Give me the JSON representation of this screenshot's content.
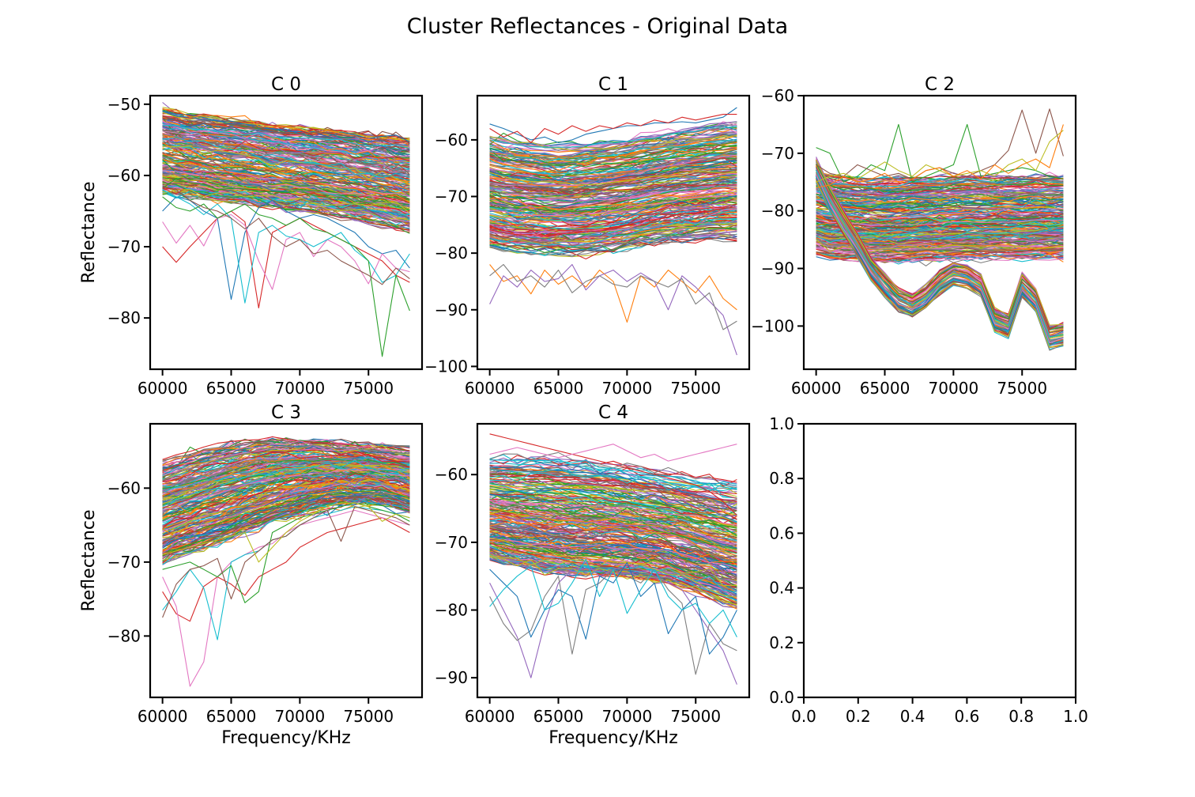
{
  "figure": {
    "title": "Cluster Reflectances - Original Data"
  },
  "palette": [
    "#1f77b4",
    "#ff7f0e",
    "#2ca02c",
    "#d62728",
    "#9467bd",
    "#8c564b",
    "#e377c2",
    "#7f7f7f",
    "#bcbd22",
    "#17becf"
  ],
  "chart_data": [
    {
      "id": "c0",
      "type": "line",
      "title": "C 0",
      "xlabel": "",
      "ylabel": "Reflectance",
      "x": [
        60000,
        61000,
        62000,
        63000,
        64000,
        65000,
        66000,
        67000,
        68000,
        69000,
        70000,
        71000,
        72000,
        73000,
        74000,
        75000,
        76000,
        77000,
        78000
      ],
      "xlim": [
        59100,
        78900
      ],
      "ylim": [
        -87.2,
        -48.8
      ],
      "xticks": [
        60000,
        65000,
        70000,
        75000
      ],
      "yticks": [
        -80,
        -70,
        -60,
        -50
      ],
      "envelope": {
        "upper": [
          -50.5,
          -51.0,
          -51.3,
          -51.5,
          -51.8,
          -52.0,
          -52.3,
          -52.5,
          -52.8,
          -53.0,
          -53.2,
          -53.4,
          -53.6,
          -53.8,
          -54.1,
          -54.4,
          -54.6,
          -54.9,
          -55.1
        ],
        "lower": [
          -62.5,
          -62.8,
          -63.0,
          -63.3,
          -63.6,
          -63.8,
          -64.0,
          -64.3,
          -64.6,
          -64.8,
          -65.0,
          -65.2,
          -65.5,
          -65.8,
          -66.1,
          -66.5,
          -66.8,
          -67.2,
          -67.6
        ]
      },
      "series_count": 260,
      "outliers": [
        {
          "values": [
            -65.0,
            -63.0,
            -63.5,
            -65.0,
            -66.0,
            -77.4,
            -68.0,
            -64.5,
            -63.5,
            -65.0,
            -66.0,
            -65.5,
            -66.0,
            -67.0,
            -68.0,
            -70.0,
            -71.0,
            -70.5,
            -73.0
          ]
        },
        {
          "values": [
            -70.0,
            -72.2,
            -70.0,
            -68.0,
            -66.0,
            -65.0,
            -66.5,
            -78.6,
            -68.0,
            -67.0,
            -66.0,
            -67.0,
            -68.0,
            -69.0,
            -70.0,
            -71.0,
            -72.0,
            -74.0,
            -75.0
          ]
        },
        {
          "values": [
            -66.5,
            -69.5,
            -67.0,
            -69.9,
            -66.0,
            -65.5,
            -67.0,
            -72.0,
            -76.0,
            -69.0,
            -68.0,
            -71.4,
            -69.0,
            -70.0,
            -72.0,
            -75.2,
            -71.0,
            -73.0,
            -73.5
          ]
        },
        {
          "values": [
            -62.0,
            -63.0,
            -64.0,
            -65.5,
            -64.0,
            -66.0,
            -77.9,
            -68.0,
            -67.0,
            -68.5,
            -69.0,
            -70.0,
            -69.0,
            -68.0,
            -70.5,
            -72.0,
            -75.0,
            -74.0,
            -71.0
          ]
        },
        {
          "values": [
            -63.0,
            -64.5,
            -65.0,
            -64.0,
            -66.0,
            -65.0,
            -64.0,
            -65.5,
            -66.0,
            -67.0,
            -66.0,
            -67.5,
            -68.0,
            -69.0,
            -70.0,
            -72.0,
            -85.4,
            -74.0,
            -79.0
          ]
        },
        {
          "values": [
            -61.5,
            -62.0,
            -63.5,
            -64.5,
            -65.0,
            -66.0,
            -67.5,
            -66.0,
            -68.5,
            -70.0,
            -69.0,
            -71.0,
            -70.5,
            -72.0,
            -73.0,
            -74.0,
            -75.3,
            -73.0,
            -74.5
          ]
        }
      ]
    },
    {
      "id": "c1",
      "type": "line",
      "title": "C 1",
      "xlabel": "",
      "ylabel": "",
      "x": [
        60000,
        61000,
        62000,
        63000,
        64000,
        65000,
        66000,
        67000,
        68000,
        69000,
        70000,
        71000,
        72000,
        73000,
        74000,
        75000,
        76000,
        77000,
        78000
      ],
      "xlim": [
        59100,
        78900
      ],
      "ylim": [
        -100.5,
        -52.2
      ],
      "xticks": [
        60000,
        65000,
        70000,
        75000
      ],
      "yticks": [
        -100,
        -90,
        -80,
        -70,
        -60
      ],
      "envelope": {
        "upper": [
          -59.5,
          -60.0,
          -60.3,
          -60.6,
          -60.8,
          -60.9,
          -60.8,
          -60.6,
          -60.3,
          -60.0,
          -59.6,
          -59.2,
          -58.8,
          -58.4,
          -58.0,
          -57.7,
          -57.4,
          -57.1,
          -56.9
        ],
        "lower": [
          -79.0,
          -79.5,
          -79.8,
          -80.0,
          -80.2,
          -80.3,
          -80.4,
          -80.2,
          -80.0,
          -79.7,
          -79.3,
          -78.9,
          -78.5,
          -78.2,
          -78.0,
          -77.8,
          -77.6,
          -77.5,
          -77.4
        ]
      },
      "series_count": 260,
      "outliers": [
        {
          "values": [
            -82.0,
            -85.0,
            -84.0,
            -87.2,
            -83.0,
            -85.5,
            -84.0,
            -86.0,
            -83.0,
            -85.0,
            -92.2,
            -84.0,
            -86.0,
            -83.0,
            -85.0,
            -87.0,
            -84.0,
            -88.0,
            -90.0
          ]
        },
        {
          "values": [
            -89.0,
            -84.0,
            -86.0,
            -83.0,
            -85.0,
            -84.5,
            -82.0,
            -86.5,
            -84.0,
            -83.0,
            -85.0,
            -83.5,
            -85.0,
            -90.0,
            -84.0,
            -86.0,
            -88.5,
            -91.0,
            -98.0
          ]
        },
        {
          "values": [
            -84.0,
            -82.0,
            -85.0,
            -84.0,
            -86.0,
            -83.0,
            -87.0,
            -85.0,
            -84.0,
            -85.5,
            -86.0,
            -84.0,
            -85.0,
            -86.0,
            -84.5,
            -89.0,
            -87.0,
            -93.5,
            -92.0
          ]
        },
        {
          "values": [
            -57.2,
            -58.0,
            -59.0,
            -60.0,
            -59.5,
            -60.5,
            -60.0,
            -59.0,
            -58.5,
            -58.0,
            -57.5,
            -57.5,
            -57.0,
            -57.0,
            -56.8,
            -57.0,
            -56.5,
            -56.0,
            -54.3
          ]
        },
        {
          "values": [
            -58.0,
            -59.5,
            -58.5,
            -60.5,
            -58.0,
            -59.0,
            -57.5,
            -58.5,
            -57.5,
            -58.0,
            -57.0,
            -57.5,
            -56.5,
            -57.0,
            -56.0,
            -56.5,
            -56.0,
            -55.5,
            -55.5
          ]
        }
      ]
    },
    {
      "id": "c2",
      "type": "line",
      "title": "C 2",
      "xlabel": "",
      "ylabel": "",
      "x": [
        60000,
        61000,
        62000,
        63000,
        64000,
        65000,
        66000,
        67000,
        68000,
        69000,
        70000,
        71000,
        72000,
        73000,
        74000,
        75000,
        76000,
        77000,
        78000
      ],
      "xlim": [
        59100,
        78900
      ],
      "ylim": [
        -107.5,
        -60.0
      ],
      "xticks": [
        60000,
        65000,
        70000,
        75000
      ],
      "yticks": [
        -100,
        -90,
        -80,
        -70,
        -60
      ],
      "envelope": {
        "upper": [
          -73.5,
          -74.0,
          -74.2,
          -74.4,
          -74.5,
          -74.5,
          -74.4,
          -74.3,
          -74.2,
          -74.1,
          -74.0,
          -74.0,
          -74.0,
          -74.0,
          -74.0,
          -74.0,
          -74.0,
          -74.0,
          -74.0
        ],
        "lower": [
          -87.5,
          -88.0,
          -88.3,
          -88.5,
          -88.6,
          -88.7,
          -88.7,
          -88.6,
          -88.5,
          -88.5,
          -88.4,
          -88.4,
          -88.4,
          -88.4,
          -88.4,
          -88.4,
          -88.4,
          -88.4,
          -88.4
        ]
      },
      "series_count": 260,
      "band": {
        "count": 60,
        "spread": 2.0,
        "values": [
          -73.0,
          -78.0,
          -82.0,
          -86.0,
          -90.0,
          -93.0,
          -95.5,
          -96.5,
          -95.0,
          -92.5,
          -91.0,
          -91.5,
          -93.0,
          -99.0,
          -100.0,
          -93.0,
          -95.5,
          -102.0,
          -101.5
        ]
      },
      "outliers": [
        {
          "values": [
            -69.0,
            -70.0,
            -75.0,
            -74.0,
            -72.0,
            -73.0,
            -65.0,
            -75.0,
            -74.0,
            -73.0,
            -72.0,
            -65.0,
            -74.0,
            -73.5,
            -73.0,
            -72.5,
            -73.0,
            -74.0,
            -74.5
          ]
        },
        {
          "values": [
            -72.0,
            -73.5,
            -74.0,
            -72.0,
            -73.0,
            -74.0,
            -73.5,
            -74.5,
            -73.0,
            -72.5,
            -73.5,
            -74.0,
            -73.0,
            -72.0,
            -69.5,
            -62.5,
            -70.0,
            -62.3,
            -70.5
          ]
        },
        {
          "values": [
            -75.0,
            -74.0,
            -73.5,
            -74.5,
            -73.0,
            -71.5,
            -73.0,
            -74.0,
            -72.0,
            -73.0,
            -74.0,
            -73.5,
            -73.0,
            -74.0,
            -72.0,
            -71.0,
            -73.0,
            -68.0,
            -66.0
          ]
        },
        {
          "values": [
            -76.0,
            -75.5,
            -74.0,
            -75.0,
            -74.5,
            -73.5,
            -75.0,
            -74.5,
            -73.0,
            -72.5,
            -74.0,
            -73.0,
            -74.5,
            -72.0,
            -73.5,
            -72.0,
            -71.0,
            -72.5,
            -65.0
          ]
        }
      ]
    },
    {
      "id": "c3",
      "type": "line",
      "title": "C 3",
      "xlabel": "Frequency/KHz",
      "ylabel": "Reflectance",
      "x": [
        60000,
        61000,
        62000,
        63000,
        64000,
        65000,
        66000,
        67000,
        68000,
        69000,
        70000,
        71000,
        72000,
        73000,
        74000,
        75000,
        76000,
        77000,
        78000
      ],
      "xlim": [
        59100,
        78900
      ],
      "ylim": [
        -88.3,
        -51.3
      ],
      "xticks": [
        60000,
        65000,
        70000,
        75000
      ],
      "yticks": [
        -80,
        -70,
        -60
      ],
      "envelope": {
        "upper": [
          -56.2,
          -55.6,
          -55.0,
          -54.5,
          -54.1,
          -53.8,
          -53.5,
          -53.3,
          -53.2,
          -53.2,
          -53.3,
          -53.4,
          -53.6,
          -53.8,
          -54.0,
          -54.2,
          -54.4,
          -54.6,
          -54.8
        ],
        "lower": [
          -70.0,
          -69.4,
          -68.8,
          -68.2,
          -67.5,
          -66.8,
          -66.1,
          -65.4,
          -64.7,
          -64.1,
          -63.5,
          -63.0,
          -62.5,
          -62.2,
          -62.0,
          -62.0,
          -62.2,
          -62.6,
          -63.2
        ]
      },
      "series_count": 260,
      "outliers": [
        {
          "values": [
            -74.0,
            -77.0,
            -78.0,
            -73.3,
            -72.0,
            -73.0,
            -74.5,
            -72.0,
            -71.0,
            -70.0,
            -68.0,
            -67.0,
            -66.0,
            -65.5,
            -65.0,
            -64.5,
            -64.0,
            -65.0,
            -66.0
          ]
        },
        {
          "values": [
            -72.0,
            -76.0,
            -86.8,
            -83.5,
            -72.0,
            -70.0,
            -69.0,
            -68.0,
            -67.5,
            -66.0,
            -65.0,
            -64.5,
            -64.0,
            -63.5,
            -63.0,
            -63.5,
            -64.0,
            -64.5,
            -65.0
          ]
        },
        {
          "values": [
            -76.5,
            -74.0,
            -71.0,
            -73.5,
            -80.5,
            -70.0,
            -69.0,
            -68.5,
            -67.0,
            -66.5,
            -65.0,
            -64.0,
            -63.5,
            -63.0,
            -62.5,
            -62.8,
            -63.0,
            -63.5,
            -64.0
          ]
        },
        {
          "values": [
            -71.0,
            -70.5,
            -70.0,
            -71.0,
            -72.0,
            -70.5,
            -75.5,
            -74.0,
            -66.0,
            -65.0,
            -64.0,
            -63.5,
            -63.0,
            -62.5,
            -62.0,
            -62.5,
            -63.0,
            -63.5,
            -64.5
          ]
        },
        {
          "values": [
            -77.5,
            -73.0,
            -71.0,
            -70.5,
            -69.5,
            -75.0,
            -70.0,
            -68.5,
            -67.0,
            -66.5,
            -65.0,
            -64.0,
            -63.0,
            -67.2,
            -62.5,
            -63.0,
            -63.5,
            -64.0,
            -65.0
          ]
        },
        {
          "values": [
            -69.0,
            -68.5,
            -68.0,
            -67.5,
            -67.0,
            -66.5,
            -66.0,
            -70.0,
            -68.0,
            -66.0,
            -64.5,
            -63.5,
            -62.5,
            -62.0,
            -62.0,
            -62.5,
            -64.5,
            -63.5,
            -64.0
          ]
        }
      ]
    },
    {
      "id": "c4",
      "type": "line",
      "title": "C 4",
      "xlabel": "Frequency/KHz",
      "ylabel": "",
      "x": [
        60000,
        61000,
        62000,
        63000,
        64000,
        65000,
        66000,
        67000,
        68000,
        69000,
        70000,
        71000,
        72000,
        73000,
        74000,
        75000,
        76000,
        77000,
        78000
      ],
      "xlim": [
        59100,
        78900
      ],
      "ylim": [
        -92.9,
        -52.5
      ],
      "xticks": [
        60000,
        65000,
        70000,
        75000
      ],
      "yticks": [
        -90,
        -80,
        -70,
        -60
      ],
      "envelope": {
        "upper": [
          -57.5,
          -57.4,
          -57.3,
          -57.2,
          -57.2,
          -57.3,
          -57.5,
          -57.7,
          -58.0,
          -58.3,
          -58.6,
          -59.0,
          -59.3,
          -59.7,
          -60.0,
          -60.4,
          -60.7,
          -61.0,
          -61.3
        ],
        "lower": [
          -72.5,
          -73.0,
          -73.5,
          -74.0,
          -74.4,
          -74.7,
          -74.9,
          -75.0,
          -75.1,
          -75.2,
          -75.3,
          -75.5,
          -75.8,
          -76.2,
          -76.8,
          -77.5,
          -78.2,
          -79.0,
          -79.8
        ]
      },
      "series_count": 260,
      "outliers": [
        {
          "values": [
            -76.0,
            -80.0,
            -84.0,
            -90.0,
            -82.0,
            -76.0,
            -74.0,
            -73.0,
            -75.0,
            -74.0,
            -73.5,
            -74.0,
            -75.0,
            -76.0,
            -77.0,
            -80.0,
            -83.0,
            -86.0,
            -91.0
          ]
        },
        {
          "values": [
            -78.0,
            -82.0,
            -84.5,
            -83.0,
            -78.0,
            -75.0,
            -86.5,
            -77.0,
            -76.0,
            -74.0,
            -75.0,
            -76.0,
            -74.0,
            -77.0,
            -79.0,
            -89.5,
            -82.0,
            -85.0,
            -86.0
          ]
        },
        {
          "values": [
            -74.0,
            -76.0,
            -78.0,
            -84.0,
            -80.0,
            -77.0,
            -78.0,
            -84.3,
            -75.0,
            -76.0,
            -73.0,
            -78.0,
            -76.0,
            -83.5,
            -80.0,
            -78.0,
            -86.5,
            -84.0,
            -80.0
          ]
        },
        {
          "values": [
            -54.0,
            -54.5,
            -55.0,
            -55.5,
            -56.0,
            -56.5,
            -57.0,
            -57.5,
            -58.0,
            -58.5,
            -59.0,
            -59.5,
            -60.0,
            -60.5,
            -61.0,
            -61.5,
            -62.5,
            -64.0,
            -66.0
          ]
        },
        {
          "values": [
            -57.0,
            -56.5,
            -56.0,
            -56.5,
            -57.0,
            -57.5,
            -57.0,
            -56.5,
            -56.0,
            -55.5,
            -56.5,
            -57.5,
            -57.0,
            -58.0,
            -57.5,
            -57.0,
            -56.5,
            -56.0,
            -55.5
          ]
        },
        {
          "values": [
            -79.5,
            -77.0,
            -75.0,
            -73.5,
            -80.0,
            -79.0,
            -76.0,
            -72.5,
            -78.0,
            -74.0,
            -80.5,
            -77.0,
            -74.0,
            -78.0,
            -80.0,
            -79.0,
            -82.0,
            -80.0,
            -84.0
          ]
        }
      ]
    },
    {
      "id": "empty",
      "type": "line",
      "title": "",
      "xlabel": "",
      "ylabel": "",
      "x": [],
      "xlim": [
        0.0,
        1.0
      ],
      "ylim": [
        0.0,
        1.0
      ],
      "xticks": [
        0.0,
        0.2,
        0.4,
        0.6,
        0.8,
        1.0
      ],
      "yticks": [
        0.0,
        0.2,
        0.4,
        0.6,
        0.8,
        1.0
      ],
      "tick_format": "decimal1",
      "series_count": 0
    }
  ]
}
